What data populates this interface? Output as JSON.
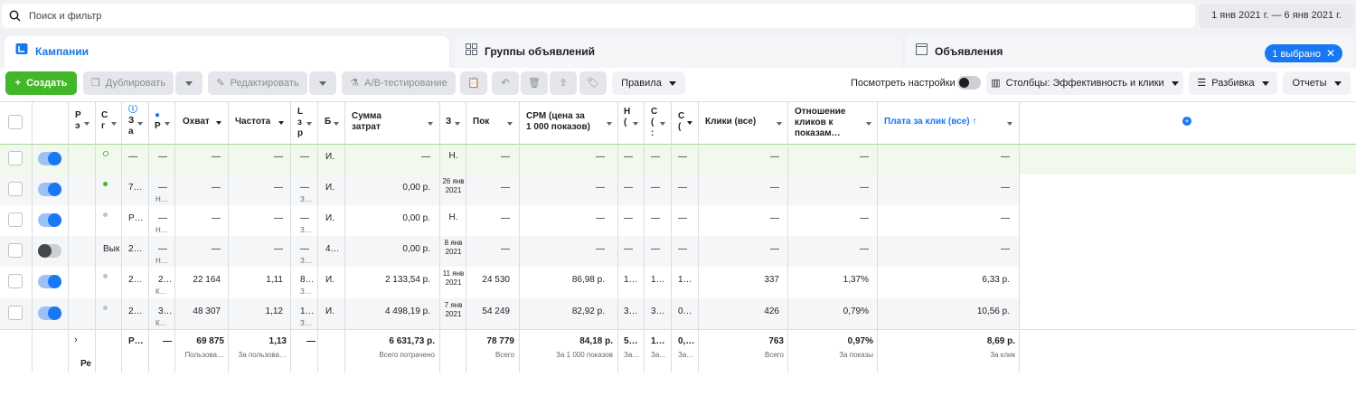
{
  "search": {
    "placeholder": "Поиск и фильтр"
  },
  "date_range": "1 янв 2021 г. — 6 янв 2021 г.",
  "tabs": {
    "campaigns": "Кампании",
    "ad_groups": "Группы объявлений",
    "ads": "Объявления",
    "selected": "1 выбрано"
  },
  "toolbar": {
    "create": "Создать",
    "duplicate": "Дублировать",
    "edit": "Редактировать",
    "ab_test": "A/B-тестирование",
    "rules": "Правила",
    "view_settings": "Посмотреть настройки",
    "columns": "Столбцы: Эффективность и клики",
    "breakdown": "Разбивка",
    "reports": "Отчеты"
  },
  "headers": {
    "c3a": "Р",
    "c3b": "э",
    "c4": "С",
    "c4b": "г",
    "c5a": "З",
    "c5b": "р",
    "c5c": "а",
    "c6": "Р",
    "reach": "Охват",
    "frequency": "Частота",
    "c9a": "L",
    "c9b": "з",
    "c9c": "р",
    "c10": "Б",
    "spend_a": "Сумма",
    "spend_b": "затрат",
    "c12": "З",
    "impressions": "Пок",
    "cpm_a": "CPM (цена за",
    "cpm_b": "1 000 показов)",
    "c15a": "Н",
    "c15b": "(",
    "c16a": "С",
    "c16b": "(",
    "c16c": ":",
    "c17a": "С",
    "c17b": "(",
    "clicks": "Клики (все)",
    "ctr_a": "Отношение",
    "ctr_b": "кликов к",
    "ctr_c": "показам…",
    "cpc": "Плата за клик (все) ↑"
  },
  "rows": [
    {
      "toggle": "on",
      "dot": "ring",
      "c4": "",
      "c5": "—",
      "c5s": "",
      "c6": "—",
      "c6s": "",
      "reach": "—",
      "freq": "—",
      "c9": "—",
      "c9s": "",
      "c10": "И.",
      "spend": "—",
      "c12": "Н.",
      "impr": "—",
      "cpm": "—",
      "c15": "—",
      "c16": "—",
      "c17": "—",
      "clicks": "—",
      "ctr": "—",
      "cpc": "—"
    },
    {
      "toggle": "on",
      "dot": "green",
      "c4": "",
      "c5": "7…",
      "c5s": "",
      "c6": "—",
      "c6s": "Н…",
      "reach": "—",
      "freq": "—",
      "c9": "—",
      "c9s": "З…",
      "c10": "И.",
      "spend": "0,00 р.",
      "c12": "26 янв 2021",
      "impr": "—",
      "cpm": "—",
      "c15": "—",
      "c16": "—",
      "c17": "—",
      "clicks": "—",
      "ctr": "—",
      "cpc": "—"
    },
    {
      "toggle": "on",
      "dot": "grey",
      "c4": "",
      "c5": "Р…",
      "c5s": "",
      "c6": "—",
      "c6s": "Н…",
      "reach": "—",
      "freq": "—",
      "c9": "—",
      "c9s": "З…",
      "c10": "И.",
      "spend": "0,00 р.",
      "c12": "Н.",
      "impr": "—",
      "cpm": "—",
      "c15": "—",
      "c16": "—",
      "c17": "—",
      "clicks": "—",
      "ctr": "—",
      "cpc": "—"
    },
    {
      "toggle": "off",
      "dot": "none",
      "c4": "Вык",
      "c5": "2…",
      "c5s": "",
      "c6": "—",
      "c6s": "Н…",
      "reach": "—",
      "freq": "—",
      "c9": "—",
      "c9s": "З…",
      "c10": "4…",
      "spend": "0,00 р.",
      "c12": "8 янв 2021",
      "impr": "—",
      "cpm": "—",
      "c15": "—",
      "c16": "—",
      "c17": "—",
      "clicks": "—",
      "ctr": "—",
      "cpc": "—"
    },
    {
      "toggle": "on",
      "dot": "grey",
      "c4": "",
      "c5": "2…",
      "c5s": "",
      "c6": "2…",
      "c6s": "К…",
      "reach": "22 164",
      "freq": "1,11",
      "c9": "8…",
      "c9s": "З…",
      "c10": "И.",
      "spend": "2 133,54 р.",
      "c12": "11 янв 2021",
      "impr": "24 530",
      "cpm": "86,98 р.",
      "c15": "1…",
      "c16": "1…",
      "c17": "1…",
      "clicks": "337",
      "ctr": "1,37%",
      "cpc": "6,33 р."
    },
    {
      "toggle": "on",
      "dot": "grey",
      "c4": "",
      "c5": "2…",
      "c5s": "",
      "c6": "3…",
      "c6s": "К…",
      "reach": "48 307",
      "freq": "1,12",
      "c9": "1…",
      "c9s": "З…",
      "c10": "И.",
      "spend": "4 498,19 р.",
      "c12": "7 янв 2021",
      "impr": "54 249",
      "cpm": "82,92 р.",
      "c15": "3…",
      "c16": "3…",
      "c17": "0…",
      "clicks": "426",
      "ctr": "0,79%",
      "cpc": "10,56 р."
    }
  ],
  "totals": {
    "c3": "Ре",
    "c5": "Р…",
    "c6": "—",
    "reach": "69 875",
    "reach_sub": "Пользова…",
    "freq": "1,13",
    "freq_sub": "За пользова…",
    "c9": "—",
    "spend": "6 631,73 р.",
    "spend_sub": "Всего потрачено",
    "impr": "78 779",
    "impr_sub": "Всего",
    "cpm": "84,18 р.",
    "cpm_sub": "За 1 000 показов",
    "c15": "5…",
    "c15_sub": "За…",
    "c16": "1…",
    "c16_sub": "За…",
    "c17": "0,…",
    "c17_sub": "За…",
    "clicks": "763",
    "clicks_sub": "Всего",
    "ctr": "0,97%",
    "ctr_sub": "За показы",
    "cpc": "8,69 р.",
    "cpc_sub": "За клик"
  },
  "colors": {
    "accent": "#1877f2",
    "create": "#42b72a",
    "selected_row": "#f1f8ec"
  }
}
